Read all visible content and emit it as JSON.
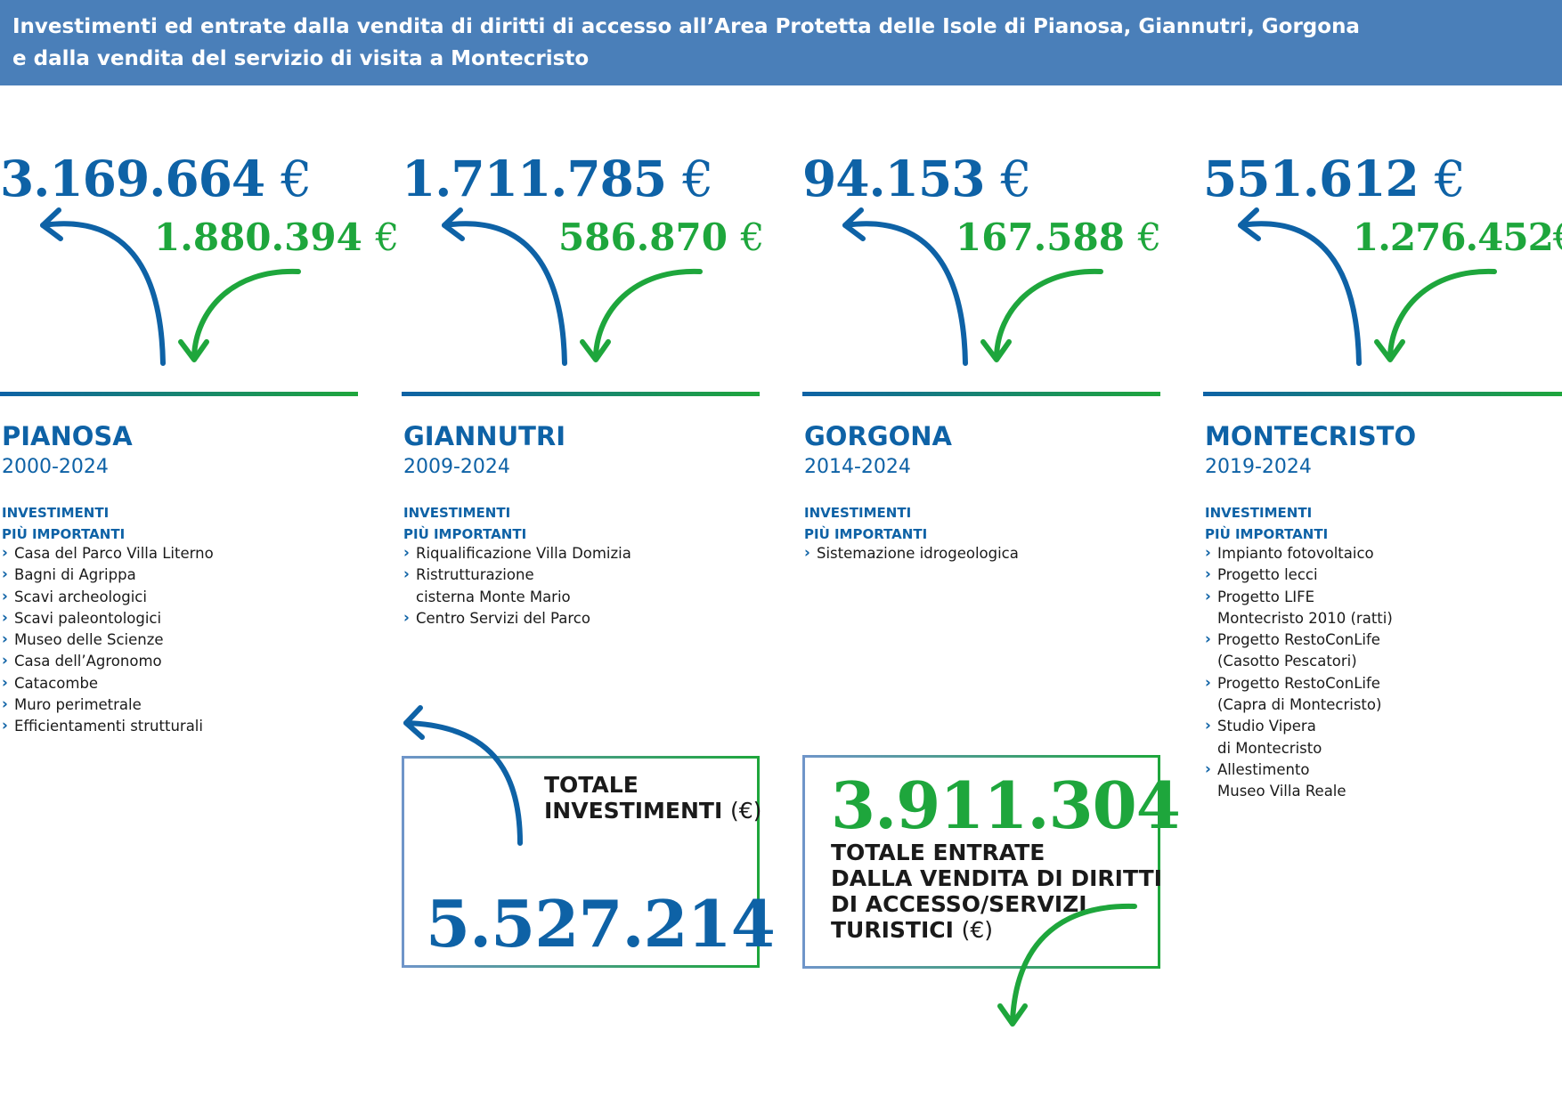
{
  "header": {
    "line1": "Investimenti ed entrate dalla vendita di diritti di accesso all’Area Protetta delle Isole di Pianosa, Giannutri, Gorgona",
    "line2": "e dalla vendita del servizio di visita a Montecristo"
  },
  "colors": {
    "blue": "#0e62a6",
    "green": "#1ea63c",
    "header_bg": "#4a7fb9"
  },
  "currency": "€",
  "islands": [
    {
      "investment": "3.169.664",
      "revenue": "1.880.394",
      "name": "PIANOSA",
      "years": "2000-2024",
      "label_line1": "INVESTIMENTI",
      "label_line2": "PIÙ IMPORTANTI",
      "items": [
        "Casa del Parco Villa Literno",
        "Bagni di Agrippa",
        "Scavi archeologici",
        "Scavi paleontologici",
        "Museo delle Scienze",
        "Casa dell’Agronomo",
        "Catacombe",
        "Muro perimetrale",
        "Efficientamenti strutturali"
      ]
    },
    {
      "investment": "1.711.785",
      "revenue": "586.870",
      "name": "GIANNUTRI",
      "years": "2009-2024",
      "label_line1": "INVESTIMENTI",
      "label_line2": "PIÙ IMPORTANTI",
      "items": [
        "Riqualificazione Villa Domizia",
        "Ristrutturazione",
        "cisterna Monte Mario",
        "Centro Servizi del Parco"
      ]
    },
    {
      "investment": "94.153",
      "revenue": "167.588",
      "name": "GORGONA",
      "years": "2014-2024",
      "label_line1": "INVESTIMENTI",
      "label_line2": "PIÙ IMPORTANTI",
      "items": [
        "Sistemazione idrogeologica"
      ]
    },
    {
      "investment": "551.612",
      "revenue": "1.276.452",
      "name": "MONTECRISTO",
      "years": "2019-2024",
      "label_line1": "INVESTIMENTI",
      "label_line2": "PIÙ IMPORTANTI",
      "items": [
        "Impianto fotovoltaico",
        "Progetto lecci",
        "Progetto LIFE",
        "Montecristo 2010 (ratti)",
        "Progetto RestoConLife",
        "(Casotto Pescatori)",
        "Progetto RestoConLife",
        "(Capra di Montecristo)",
        "Studio Vipera",
        "di Montecristo",
        "Allestimento",
        "Museo Villa Reale"
      ]
    }
  ],
  "totals": {
    "investments_title_line1": "TOTALE",
    "investments_title_line2": "INVESTIMENTI",
    "investments_unit": "(€)",
    "investments_value": "5.527.214",
    "revenues_value": "3.911.304",
    "revenues_title_line1": "TOTALE ENTRATE",
    "revenues_title_line2": "DALLA VENDITA DI DIRITTI",
    "revenues_title_line3": "DI ACCESSO/SERVIZI",
    "revenues_title_line4": "TURISTICI",
    "revenues_unit": "(€)"
  }
}
